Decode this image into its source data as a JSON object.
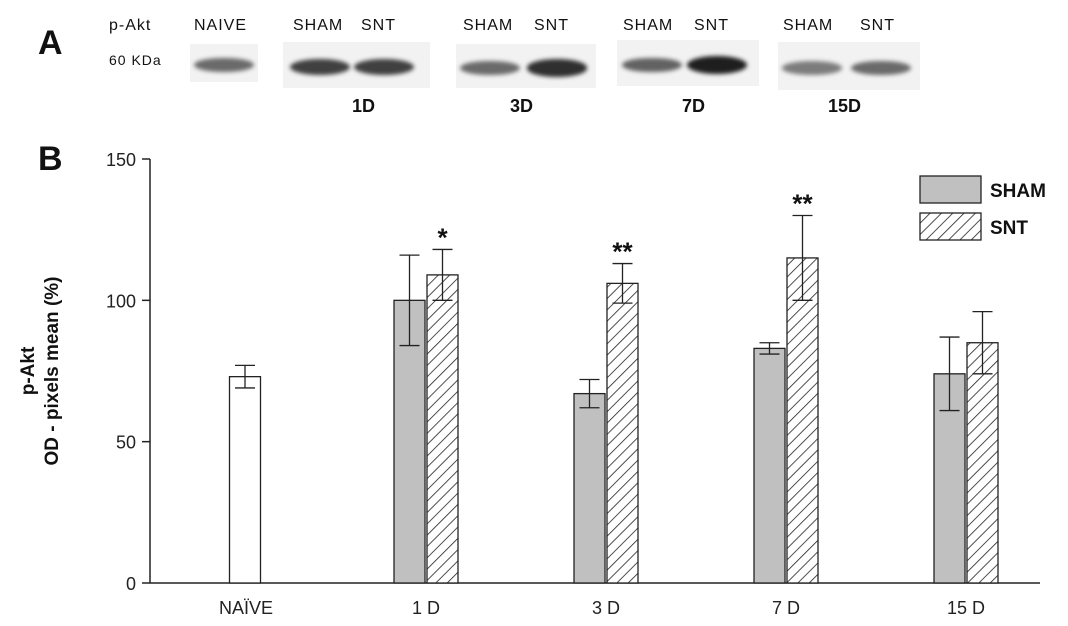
{
  "panel_a": {
    "letter": "A",
    "protein_label": "p-Akt",
    "marker_label": "60 KDa",
    "groups": [
      {
        "id": "naive",
        "lanes": [
          "NAIVE"
        ],
        "day": "",
        "intensity": [
          0.55
        ]
      },
      {
        "id": "1d",
        "lanes": [
          "SHAM",
          "SNT"
        ],
        "day": "1D",
        "intensity": [
          0.8,
          0.8
        ]
      },
      {
        "id": "3d",
        "lanes": [
          "SHAM",
          "SNT"
        ],
        "day": "3D",
        "intensity": [
          0.55,
          0.9
        ]
      },
      {
        "id": "7d",
        "lanes": [
          "SHAM",
          "SNT"
        ],
        "day": "7D",
        "intensity": [
          0.6,
          1.0
        ]
      },
      {
        "id": "15d",
        "lanes": [
          "SHAM",
          "SNT"
        ],
        "day": "15D",
        "intensity": [
          0.45,
          0.55
        ]
      }
    ]
  },
  "panel_b": {
    "letter": "B"
  },
  "chart_data": {
    "type": "bar",
    "title": "",
    "ylabel": [
      "p-Akt",
      "OD - pixels mean (%)"
    ],
    "xlabel": "",
    "ylim": [
      0,
      150
    ],
    "yticks": [
      0,
      50,
      100,
      150
    ],
    "categories": [
      "NAÏVE",
      "1 D",
      "3 D",
      "7 D",
      "15 D"
    ],
    "naive": {
      "value": 73,
      "error": 4
    },
    "series": [
      {
        "name": "SHAM",
        "fill": "#c0c0c0",
        "pattern": "solid",
        "values": [
          null,
          100,
          67,
          83,
          74
        ],
        "errors": [
          null,
          16,
          5,
          2,
          13
        ]
      },
      {
        "name": "SNT",
        "fill": "#ffffff",
        "pattern": "hatched",
        "values": [
          null,
          109,
          106,
          115,
          85
        ],
        "errors": [
          null,
          9,
          7,
          15,
          11
        ]
      }
    ],
    "significance": [
      null,
      "*",
      "**",
      "**",
      null
    ],
    "legend_position": "top-right",
    "grid": false
  }
}
